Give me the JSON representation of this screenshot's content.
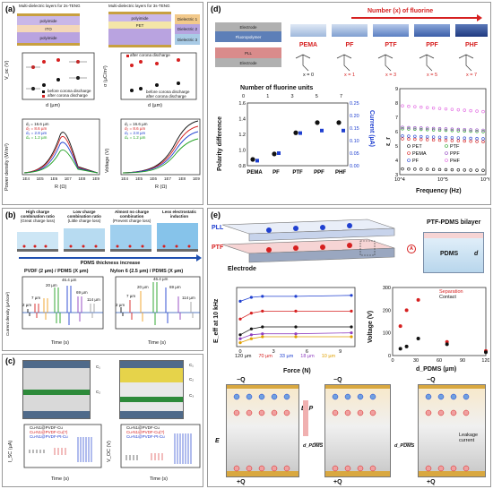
{
  "panels": {
    "a": "(a)",
    "b": "(b)",
    "c": "(c)",
    "d": "(d)",
    "e": "(e)"
  },
  "panel_a": {
    "schematic_left_title": "Multi-dielectric layers for 2s-TENG",
    "schematic_right_title": "Multi-dielectric layers for 3s-TENG",
    "layers_left": [
      "polyimide",
      "ITO",
      "polyimide"
    ],
    "layers_right": [
      "polyimide",
      "PET",
      "Dielectric 1",
      "Dielectric 2",
      "Dielectric 3"
    ],
    "voc_ylabel": "V_oc (V)",
    "sigma_ylabel": "σ (µC/m²)",
    "x_label_d": "d (µm)",
    "legend_before": "before corona discharge",
    "legend_after": "after corona discharge",
    "power_ylabel": "Power density (W/m²)",
    "voltage_ylabel": "Voltage (V)",
    "r_xlabel": "R (Ω)",
    "r_ticks": [
      "1E4",
      "1E5",
      "1E6",
      "1E7",
      "1E8",
      "1E9"
    ],
    "d_legend": [
      "d₁ = 16.6 µm",
      "d₂ = 8.6 µm",
      "d₃ = 2.8 µm",
      "d₄ = 1.2 µm"
    ]
  },
  "panel_b": {
    "headings": [
      {
        "t1": "High charge",
        "t2": "combination ratio",
        "t3": "(Great charge loss)"
      },
      {
        "t1": "Low charge",
        "t2": "combination ratio",
        "t3": "(Little charge loss)"
      },
      {
        "t1": "Almost no charge",
        "t2": "combination",
        "t3": "(Prevent charge loss)"
      },
      {
        "t1": "Less electrostatic",
        "t2": "induction",
        "t3": ""
      }
    ],
    "arrow_label": "PDMS thickness increase",
    "plot1_title": "PVDF (2 µm) / PDMS (X µm)",
    "plot2_title": "Nylon 6 (2.5 µm) / PDMS (X µm)",
    "plot1_labels": [
      "2 µm",
      "7 µm",
      "20 µm",
      "46.4 µm",
      "69 µm",
      "114 µm"
    ],
    "plot2_labels": [
      "2 µm",
      "7 µm",
      "20 µm",
      "46.4 µm",
      "69 µm",
      "114 µm"
    ],
    "ylabel": "Current density (µA/cm²)",
    "xlabel": "Time (s)"
  },
  "panel_c": {
    "legend": [
      "Cu-N1@PVDF-Cu",
      "Cu-N1@PVDF-Cu(?)",
      "Cu-N1@PVDF-Pt-Cu"
    ],
    "ylabel_left": "I_SC (µA)",
    "ylabel_right": "V_OC (V)",
    "xlabel": "Time (s)",
    "cap_labels": [
      "C₁",
      "C₂",
      "C₃"
    ]
  },
  "panel_d": {
    "electrode_top": "Electrode",
    "fluoropolymer": "Fluoropolymer",
    "pll": "PLL",
    "electrode_bottom": "Electrode",
    "arrow_title": "Number (x) of fluorine",
    "polymers": [
      {
        "name": "PEMA",
        "x": "x = 0"
      },
      {
        "name": "PF",
        "x": "x = 1"
      },
      {
        "name": "PTF",
        "x": "x = 3"
      },
      {
        "name": "PPF",
        "x": "x = 5"
      },
      {
        "name": "PHF",
        "x": "x = 7"
      }
    ],
    "chart1_toplabel": "Number of fluorine units",
    "chart1_top_ticks": [
      "0",
      "1",
      "3",
      "5",
      "7"
    ],
    "chart1_ylabel_left": "Polarity difference",
    "chart1_ylabel_right": "Current (µA)",
    "chart2_ylabel": "ε_r",
    "chart2_xlabel": "Frequency (Hz)",
    "chart2_legend": [
      "PET",
      "PEMA",
      "PF",
      "PTF",
      "PPF",
      "PHF"
    ]
  },
  "panel_e": {
    "pll": "PLL",
    "ptf": "PTF",
    "electrode": "Electrode",
    "bilayer_title": "PTF-PDMS bilayer",
    "pdms": "PDMS",
    "d_label": "d",
    "a_marker": "A",
    "force_ylabel": "E_eff at 10 kHz",
    "force_xlabel": "Force (N)",
    "force_legend": [
      "120 µm",
      "70 µm",
      "33 µm",
      "18 µm",
      "10 µm"
    ],
    "volt_ylabel": "Voltage (V)",
    "volt_xlabel": "d_PDMS (µm)",
    "volt_legend": [
      "Separation",
      "Contact"
    ],
    "bottom_plus": "+Q",
    "bottom_minus": "−Q",
    "field_E": "E",
    "field_Ep": "E_P",
    "dpdms": "d_PDMS",
    "leakage": "Leakage current"
  },
  "chart_data": [
    {
      "type": "scatter",
      "id": "d-polarity-current",
      "title": "",
      "xlabel": "",
      "ylabel": "Polarity difference",
      "categories": [
        "PEMA",
        "PF",
        "PTF",
        "PPF",
        "PHF"
      ],
      "series": [
        {
          "name": "Polarity difference",
          "values": [
            0.88,
            0.95,
            1.22,
            1.35,
            1.35
          ]
        },
        {
          "name": "Current (µA)",
          "values": [
            0.02,
            0.05,
            0.13,
            0.14,
            0.14
          ]
        }
      ],
      "ylim_left": [
        0.8,
        1.6
      ],
      "yticks_left": [
        "0.8",
        "1.0",
        "1.2",
        "1.4",
        "1.6"
      ],
      "ylim_right": [
        0.0,
        0.25
      ],
      "yticks_right": [
        "0.00",
        "0.05",
        "0.10",
        "0.15",
        "0.20",
        "0.25"
      ]
    },
    {
      "type": "line",
      "id": "d-permittivity",
      "ylabel": "ε_r",
      "xlabel": "Frequency (Hz)",
      "x": [
        "10^4",
        "10^5",
        "10^6"
      ],
      "ylim": [
        3,
        9
      ],
      "yticks": [
        "3",
        "4",
        "5",
        "6",
        "7",
        "8",
        "9"
      ],
      "series": [
        {
          "name": "PET",
          "values": [
            3.4,
            3.35,
            3.3
          ]
        },
        {
          "name": "PEMA",
          "values": [
            5.5,
            5.4,
            5.3
          ]
        },
        {
          "name": "PF",
          "values": [
            5.7,
            5.6,
            5.5
          ]
        },
        {
          "name": "PTF",
          "values": [
            6.2,
            6.1,
            6.0
          ]
        },
        {
          "name": "PPF",
          "values": [
            6.3,
            6.2,
            6.1
          ]
        },
        {
          "name": "PHF",
          "values": [
            7.8,
            7.6,
            7.4
          ]
        }
      ]
    },
    {
      "type": "line",
      "id": "e-force",
      "ylabel": "E_eff at 10 kHz",
      "xlabel": "Force (N)",
      "x": [
        0,
        1,
        2,
        5,
        10
      ],
      "xticks": [
        "0",
        "3",
        "6",
        "9"
      ],
      "ylim": [
        0,
        30
      ],
      "series": [
        {
          "name": "120 µm",
          "values": [
            6,
            9,
            10,
            10,
            10
          ]
        },
        {
          "name": "70 µm",
          "values": [
            14,
            17,
            18,
            18,
            18
          ]
        },
        {
          "name": "33 µm",
          "values": [
            23,
            25,
            25.5,
            25.5,
            26
          ]
        },
        {
          "name": "18 µm",
          "values": [
            4,
            6,
            6.5,
            6.5,
            7
          ]
        },
        {
          "name": "10 µm",
          "values": [
            2,
            4,
            5,
            5,
            5
          ]
        }
      ]
    },
    {
      "type": "scatter",
      "id": "e-voltage",
      "ylabel": "Voltage (V)",
      "xlabel": "d_PDMS (µm)",
      "xlim": [
        0,
        120
      ],
      "xticks": [
        "0",
        "30",
        "60",
        "90",
        "120"
      ],
      "ylim": [
        0,
        300
      ],
      "yticks": [
        "0",
        "100",
        "200",
        "300"
      ],
      "series": [
        {
          "name": "Separation",
          "x": [
            10,
            18,
            33,
            70,
            120
          ],
          "values": [
            130,
            200,
            245,
            60,
            20
          ]
        },
        {
          "name": "Contact",
          "x": [
            10,
            18,
            33,
            70,
            120
          ],
          "values": [
            30,
            40,
            75,
            50,
            15
          ]
        }
      ]
    }
  ]
}
